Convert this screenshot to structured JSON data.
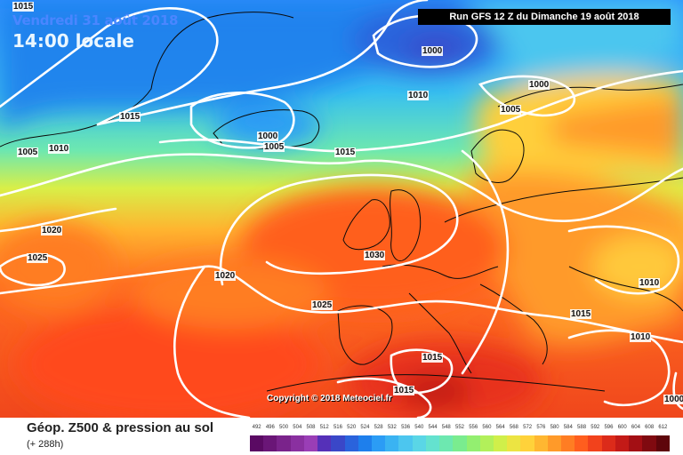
{
  "header": {
    "date": "Vendredi 31 août 2018",
    "time": "14:00 locale",
    "run": "Run GFS 12 Z du Dimanche 19 août 2018"
  },
  "map": {
    "copyright": "Copyright © 2018 Meteociel.fr",
    "isobar_labels": [
      "1015",
      "1000",
      "1010",
      "1000",
      "1005",
      "1015",
      "1000",
      "1005",
      "1005",
      "1010",
      "1015",
      "1020",
      "1025",
      "1030",
      "1020",
      "1025",
      "1010",
      "1015",
      "1010",
      "1015",
      "1015",
      "1000"
    ]
  },
  "footer": {
    "title": "Géop. Z500 & pression au sol",
    "subtitle": "(+ 288h)"
  },
  "legend": {
    "ticks": [
      "492",
      "496",
      "500",
      "504",
      "508",
      "512",
      "516",
      "520",
      "524",
      "528",
      "532",
      "536",
      "540",
      "544",
      "548",
      "552",
      "556",
      "560",
      "564",
      "568",
      "572",
      "576",
      "580",
      "584",
      "588",
      "592",
      "596",
      "600",
      "604",
      "608",
      "612"
    ],
    "colors": [
      "#5a0a63",
      "#6a1677",
      "#7a238b",
      "#8a30a0",
      "#9a3eb6",
      "#5530b8",
      "#3a47c8",
      "#2a63dc",
      "#1e7fec",
      "#2b9cf5",
      "#3ab3f2",
      "#4cc6ef",
      "#5ad6e6",
      "#64e2cf",
      "#6de8b0",
      "#7aec8f",
      "#93ef70",
      "#b2f05a",
      "#d0ef4a",
      "#ece442",
      "#ffd23a",
      "#ffb731",
      "#ff9a29",
      "#ff7d23",
      "#ff5e1e",
      "#f2421c",
      "#dc2b1a",
      "#c31a17",
      "#a30f14",
      "#800a10",
      "#5e050b"
    ]
  }
}
